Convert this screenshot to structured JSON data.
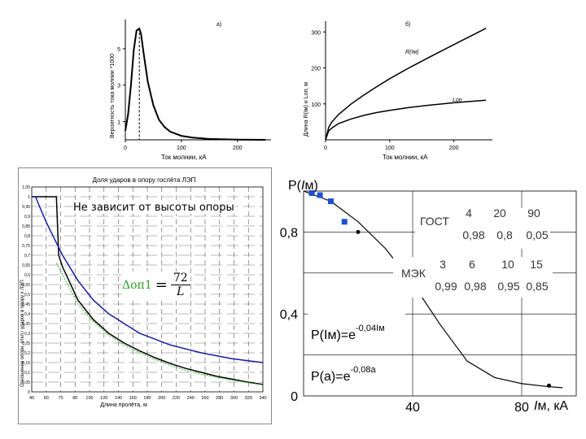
{
  "chart_data": [
    {
      "id": "a",
      "type": "line",
      "panel_label": "а)",
      "xlabel": "Ток молнии, кА",
      "ylabel": "Вероятность тока молнии *1000",
      "xlim": [
        0,
        260
      ],
      "ylim": [
        0,
        6.6
      ],
      "xticks": [
        0,
        100,
        200
      ],
      "yticks": [
        1,
        3,
        5
      ],
      "marker_x": 25,
      "series": [
        {
          "name": "density",
          "x": [
            0,
            5,
            10,
            15,
            20,
            25,
            28,
            32,
            40,
            50,
            60,
            70,
            80,
            100,
            120,
            150,
            200,
            250
          ],
          "y": [
            0.5,
            1.4,
            3.0,
            4.9,
            6.0,
            6.1,
            5.8,
            4.9,
            3.2,
            1.9,
            1.1,
            0.7,
            0.45,
            0.22,
            0.12,
            0.05,
            0.01,
            0.0
          ]
        }
      ]
    },
    {
      "id": "b",
      "type": "line",
      "panel_label": "б)",
      "xlabel": "Ток молнии, кА",
      "ylabel": "Длина R(Iм) и Lоп, м",
      "xlim": [
        0,
        260
      ],
      "ylim": [
        0,
        330
      ],
      "xticks": [
        0,
        100,
        200
      ],
      "yticks": [
        100,
        200,
        300
      ],
      "series": [
        {
          "name": "R(Iм)",
          "x": [
            0,
            5,
            10,
            20,
            40,
            60,
            80,
            100,
            130,
            160,
            200,
            250
          ],
          "y": [
            0,
            35,
            50,
            70,
            100,
            125,
            148,
            170,
            200,
            228,
            265,
            310
          ]
        },
        {
          "name": "Lоп",
          "x": [
            0,
            5,
            10,
            20,
            40,
            60,
            80,
            100,
            130,
            160,
            200,
            250
          ],
          "y": [
            0,
            25,
            33,
            45,
            58,
            68,
            76,
            82,
            90,
            96,
            103,
            110
          ]
        }
      ]
    },
    {
      "id": "c",
      "type": "line",
      "title": "Доля ударов в опору гослёта ЛЭП",
      "annotation": "Не зависит от высоты опоры",
      "formula_lhs": "Δоп1",
      "formula_equals": "=",
      "formula_num": "72",
      "formula_den": "L",
      "xlabel": "Длина пролёта, м",
      "ylabel": "Отношение опорн. откл./ ударов в опору к ЛЭП",
      "xlim": [
        40,
        340
      ],
      "ylim": [
        0,
        1.05
      ],
      "xticks": [
        "40",
        "60",
        "70",
        "80",
        "100",
        "120",
        "140",
        "160",
        "180",
        "200",
        "220",
        "240",
        "260",
        "280",
        "300",
        "320",
        "340"
      ],
      "yticks": [
        "0",
        "0,05",
        "0,1",
        "0,15",
        "0,2",
        "0,25",
        "0,3",
        "0,35",
        "0,4",
        "0,45",
        "0,5",
        "0,55",
        "0,6",
        "0,65",
        "0,7",
        "0,75",
        "0,8",
        "0,85",
        "0,9",
        "0,95",
        "1",
        "1,05"
      ],
      "series": [
        {
          "name": "black",
          "x": [
            40,
            50,
            60,
            70,
            72,
            75,
            80,
            100,
            120,
            140,
            160,
            180,
            200,
            220,
            240,
            260,
            280,
            300,
            320,
            340
          ],
          "y": [
            1,
            1,
            1,
            1,
            1,
            0.7,
            0.64,
            0.47,
            0.37,
            0.3,
            0.25,
            0.21,
            0.175,
            0.145,
            0.12,
            0.1,
            0.08,
            0.065,
            0.05,
            0.038
          ]
        },
        {
          "name": "green",
          "x": [
            72,
            80,
            100,
            120,
            140,
            160,
            180,
            200,
            220,
            240,
            260,
            280,
            300,
            320,
            340
          ],
          "y": [
            0.66,
            0.6,
            0.45,
            0.36,
            0.29,
            0.24,
            0.2,
            0.165,
            0.135,
            0.11,
            0.09,
            0.075,
            0.06,
            0.048,
            0.036
          ]
        },
        {
          "name": "blue",
          "x": [
            40,
            45,
            50,
            60,
            70,
            80,
            100,
            120,
            140,
            160,
            180,
            200,
            220,
            240,
            260,
            280,
            300,
            320,
            340
          ],
          "y": [
            1,
            1,
            0.95,
            0.86,
            0.78,
            0.7,
            0.57,
            0.47,
            0.4,
            0.35,
            0.3,
            0.27,
            0.24,
            0.22,
            0.2,
            0.185,
            0.17,
            0.16,
            0.15
          ]
        }
      ]
    },
    {
      "id": "d",
      "type": "line",
      "y_title_p": "P(",
      "y_title_i": "I",
      "y_title_m": "м)",
      "x_title_i": "I",
      "x_title_rest": "м, кА",
      "xlim": [
        0,
        100
      ],
      "ylim": [
        0,
        1
      ],
      "xticks": [
        {
          "v": 40,
          "label": "40"
        },
        {
          "v": 80,
          "label": "80"
        }
      ],
      "yticks": [
        {
          "v": 0,
          "label": "0"
        },
        {
          "v": 0.4,
          "label": "0,4"
        },
        {
          "v": 0.8,
          "label": "0,8"
        }
      ],
      "gost_label": "ГОСТ",
      "gost_currents": [
        "4",
        "20",
        "90"
      ],
      "gost_probs": [
        "0,98",
        "0,8",
        "0,05"
      ],
      "mek_label": "МЭК",
      "mek_currents": [
        "3",
        "6",
        "10",
        "15"
      ],
      "mek_probs": [
        "0,99",
        "0,98",
        "0,95",
        "0,85"
      ],
      "formula1": {
        "lhs": "P(Iм)=e",
        "sup": "-0,04Iм"
      },
      "formula2": {
        "lhs": "P(a)=e",
        "sup": "-0,08a"
      },
      "curve": {
        "x": [
          0,
          4,
          10,
          20,
          30,
          40,
          50,
          60,
          70,
          80,
          90,
          95
        ],
        "y": [
          1,
          0.98,
          0.95,
          0.85,
          0.72,
          0.55,
          0.35,
          0.17,
          0.09,
          0.06,
          0.045,
          0.04
        ]
      },
      "squares": [
        {
          "x": 3,
          "y": 0.99
        },
        {
          "x": 6,
          "y": 0.98
        },
        {
          "x": 10,
          "y": 0.95
        },
        {
          "x": 15,
          "y": 0.85
        }
      ],
      "dots": [
        {
          "x": 20,
          "y": 0.8
        },
        {
          "x": 90,
          "y": 0.05
        }
      ]
    }
  ]
}
